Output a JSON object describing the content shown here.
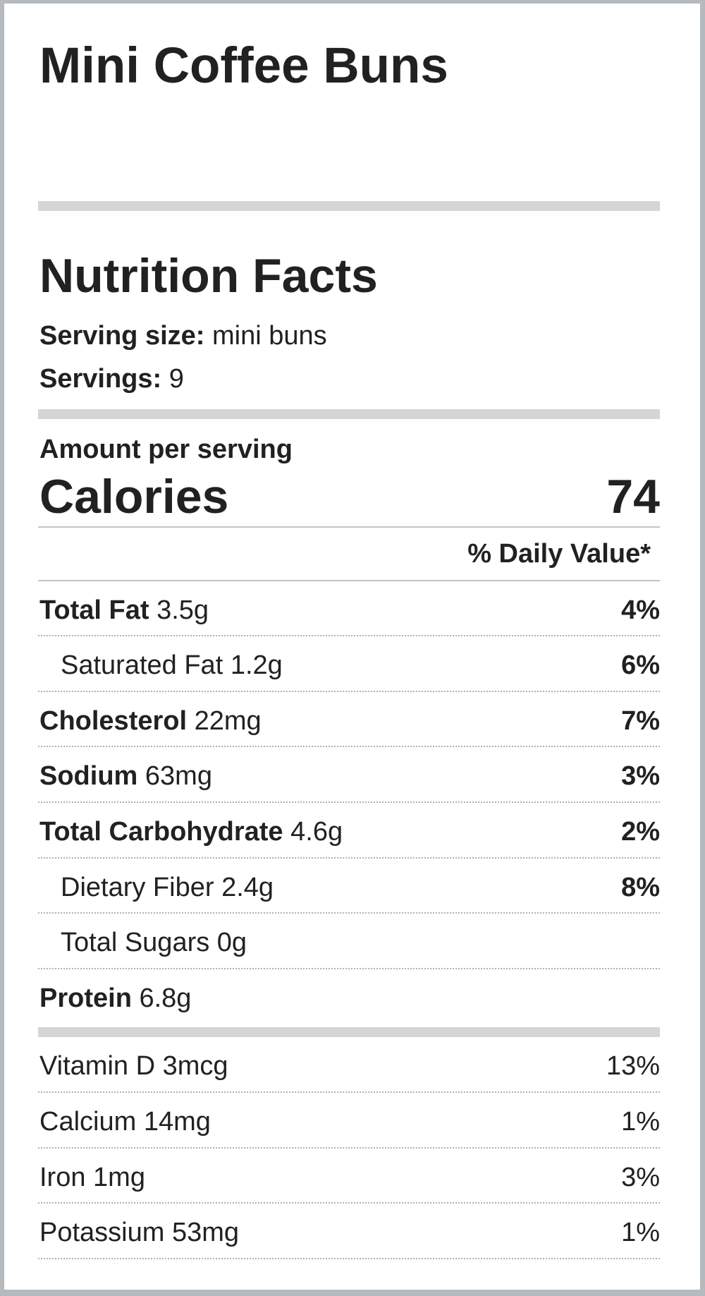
{
  "page": {
    "title": "Mini Coffee Buns"
  },
  "label": {
    "heading": "Nutrition Facts",
    "serving_size_label": "Serving size:",
    "serving_size_value": "mini buns",
    "servings_label": "Servings:",
    "servings_value": "9",
    "amount_per_serving": "Amount per serving",
    "calories_label": "Calories",
    "calories_value": "74",
    "daily_value_header": "% Daily Value*",
    "nutrients": [
      {
        "name": "Total Fat",
        "amount": "3.5g",
        "daily_value": "4%"
      },
      {
        "name": "Saturated Fat",
        "amount": "1.2g",
        "daily_value": "6%"
      },
      {
        "name": "Cholesterol",
        "amount": "22mg",
        "daily_value": "7%"
      },
      {
        "name": "Sodium",
        "amount": "63mg",
        "daily_value": "3%"
      },
      {
        "name": "Total Carbohydrate",
        "amount": "4.6g",
        "daily_value": "2%"
      },
      {
        "name": "Dietary Fiber",
        "amount": "2.4g",
        "daily_value": "8%"
      },
      {
        "name": "Total Sugars",
        "amount": "0g",
        "daily_value": ""
      },
      {
        "name": "Protein",
        "amount": "6.8g",
        "daily_value": ""
      }
    ],
    "micronutrients": [
      {
        "name": "Vitamin D",
        "amount": "3mcg",
        "daily_value": "13%"
      },
      {
        "name": "Calcium",
        "amount": "14mg",
        "daily_value": "1%"
      },
      {
        "name": "Iron",
        "amount": "1mg",
        "daily_value": "3%"
      },
      {
        "name": "Potassium",
        "amount": "53mg",
        "daily_value": "1%"
      }
    ],
    "colors": {
      "text": "#212121",
      "thick_bar": "#d5d5d5",
      "thin_rule": "#c3c3c3",
      "dotted_divider": "#b0b0b0",
      "page_border": "#b4babd"
    }
  }
}
